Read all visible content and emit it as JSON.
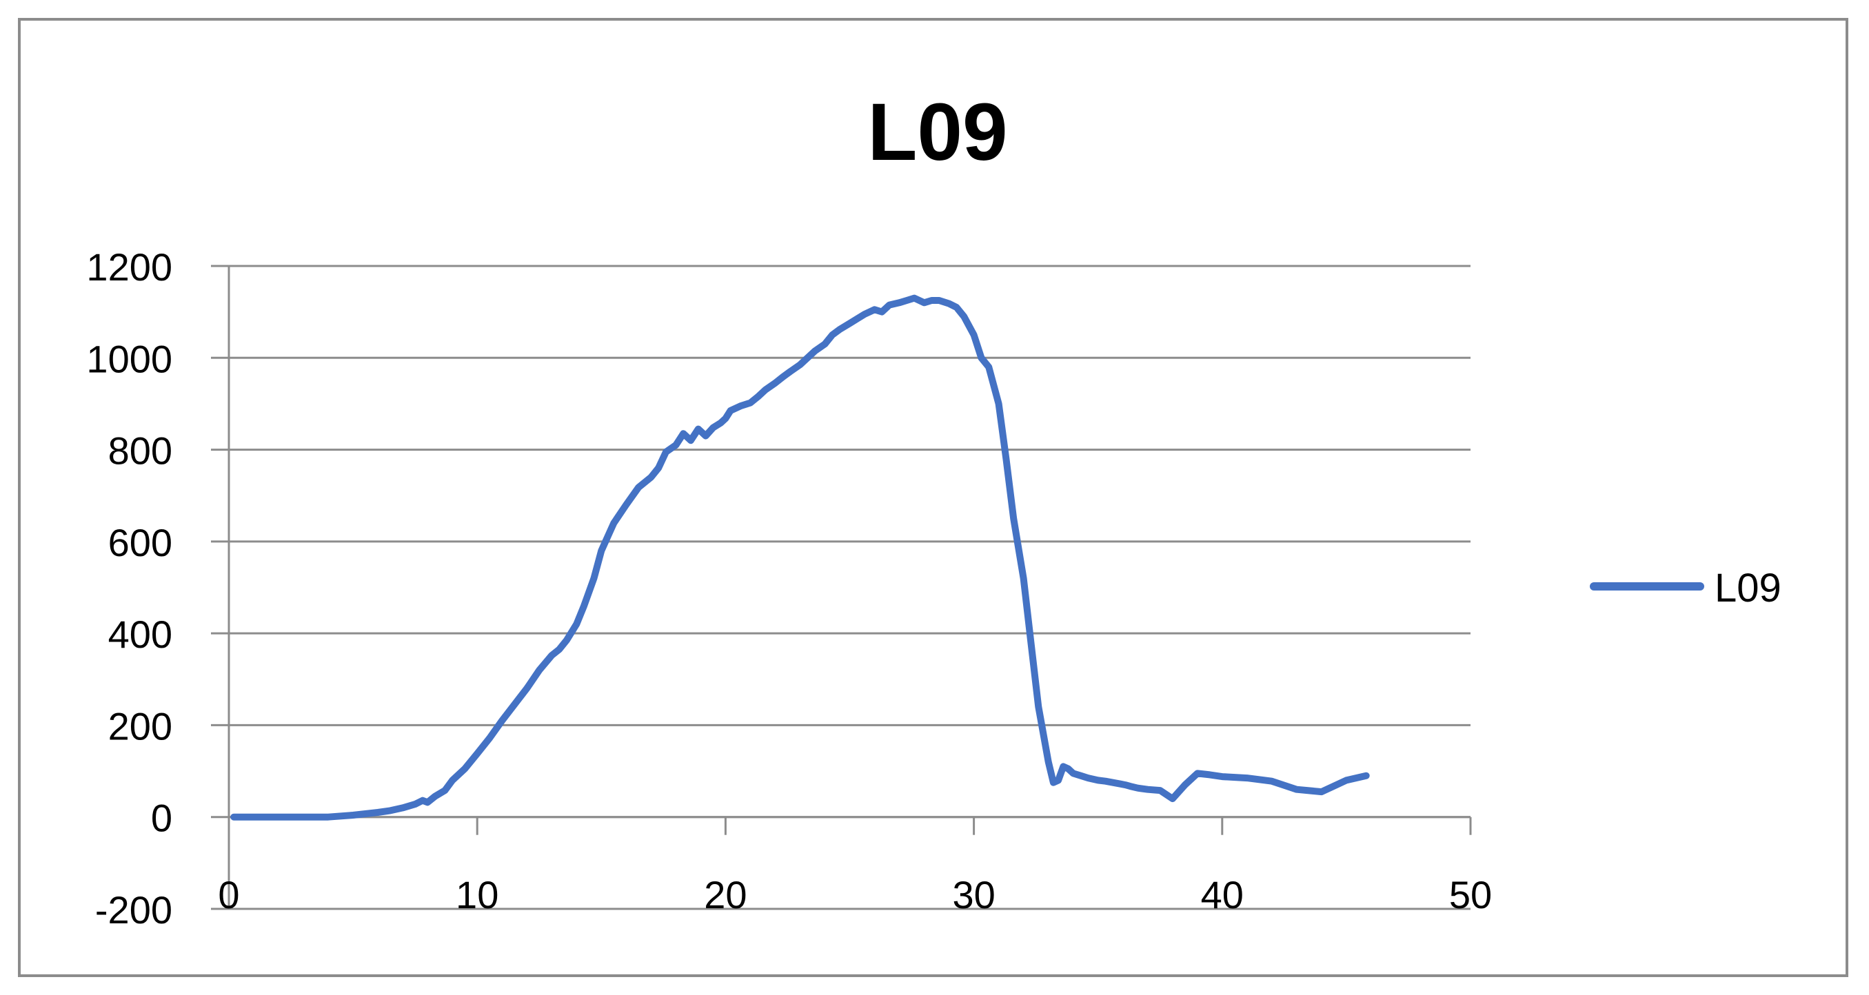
{
  "chart_data": {
    "type": "line",
    "title": "L09",
    "xlabel": "",
    "ylabel": "",
    "xlim": [
      0,
      50
    ],
    "ylim": [
      -200,
      1200
    ],
    "x_ticks": [
      "0",
      "10",
      "20",
      "30",
      "40",
      "50"
    ],
    "y_ticks": [
      "-200",
      "0",
      "200",
      "400",
      "600",
      "800",
      "1000",
      "1200"
    ],
    "grid": "horizontal",
    "legend_position": "right",
    "series": [
      {
        "name": "L09",
        "color": "#4472C4",
        "x": [
          0.2,
          1,
          2,
          3,
          4,
          5,
          6,
          6.5,
          7,
          7.5,
          7.8,
          8,
          8.3,
          8.7,
          9,
          9.5,
          10,
          10.5,
          11,
          11.5,
          12,
          12.5,
          13,
          13.3,
          13.6,
          14,
          14.3,
          14.7,
          15,
          15.5,
          16,
          16.5,
          17,
          17.3,
          17.6,
          18,
          18.3,
          18.6,
          18.9,
          19.2,
          19.5,
          19.8,
          20,
          20.2,
          20.6,
          21,
          21.3,
          21.6,
          22,
          22.3,
          22.6,
          23,
          23.3,
          23.6,
          24,
          24.3,
          24.6,
          25,
          25.3,
          25.6,
          26,
          26.3,
          26.6,
          27,
          27.3,
          27.6,
          28,
          28.3,
          28.6,
          29,
          29.3,
          29.6,
          30,
          30.3,
          30.6,
          31,
          31.3,
          31.6,
          32,
          32.3,
          32.6,
          33,
          33.2,
          33.4,
          33.6,
          33.8,
          34,
          34.3,
          34.6,
          35,
          35.3,
          35.6,
          35.9,
          36.1,
          36.3,
          36.6,
          37,
          37.5,
          38,
          38.5,
          39,
          39.5,
          40,
          41,
          42,
          43,
          44,
          45,
          45.8
        ],
        "y": [
          0,
          0,
          0,
          0,
          0,
          4,
          10,
          14,
          20,
          28,
          36,
          32,
          45,
          58,
          80,
          105,
          138,
          172,
          210,
          245,
          280,
          320,
          352,
          365,
          385,
          420,
          460,
          520,
          580,
          640,
          680,
          718,
          740,
          760,
          795,
          810,
          835,
          820,
          845,
          830,
          848,
          858,
          868,
          885,
          895,
          902,
          915,
          930,
          945,
          958,
          970,
          985,
          1000,
          1015,
          1030,
          1050,
          1062,
          1075,
          1085,
          1095,
          1105,
          1100,
          1115,
          1120,
          1125,
          1130,
          1120,
          1125,
          1125,
          1118,
          1110,
          1090,
          1050,
          1000,
          980,
          900,
          780,
          650,
          520,
          380,
          240,
          120,
          75,
          80,
          110,
          105,
          95,
          90,
          85,
          80,
          78,
          75,
          72,
          70,
          67,
          63,
          60,
          58,
          40,
          70,
          95,
          92,
          88,
          85,
          78,
          60,
          55,
          80,
          90
        ],
        "_note": "digitized trace"
      }
    ]
  }
}
